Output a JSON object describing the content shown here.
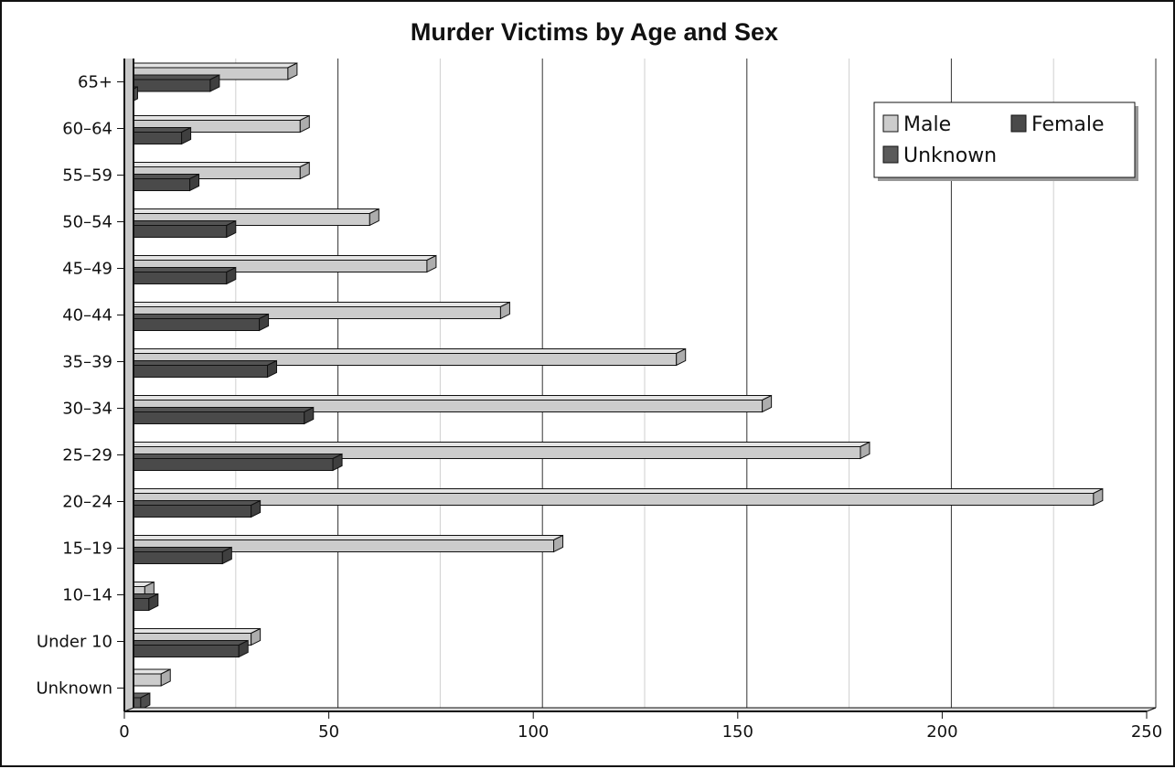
{
  "chart_data": {
    "type": "bar",
    "orientation": "horizontal",
    "style": "3d",
    "title": "Murder Victims by Age and Sex",
    "xlabel": "",
    "ylabel": "",
    "xlim": [
      0,
      250
    ],
    "x_ticks": [
      0,
      50,
      100,
      150,
      200,
      250
    ],
    "x_tick_labels": [
      "0",
      "50",
      "100",
      "150",
      "200",
      "250"
    ],
    "grid": true,
    "legend_position": "top-right",
    "categories": [
      "65+",
      "60–64",
      "55–59",
      "50–54",
      "45–49",
      "40–44",
      "35–39",
      "30–34",
      "25–29",
      "20–24",
      "15–19",
      "10–14",
      "Under 10",
      "Unknown"
    ],
    "series": [
      {
        "name": "Male",
        "color": "#cccccc",
        "values": [
          40,
          43,
          43,
          60,
          74,
          92,
          135,
          156,
          180,
          237,
          105,
          5,
          31,
          9
        ]
      },
      {
        "name": "Female",
        "color": "#4a4a4a",
        "values": [
          21,
          14,
          16,
          25,
          25,
          33,
          35,
          44,
          51,
          31,
          24,
          6,
          28,
          0
        ]
      },
      {
        "name": "Unknown",
        "color": "#5a5a5a",
        "values": [
          1,
          0,
          0,
          0,
          0,
          0,
          0,
          0,
          0,
          0,
          0,
          0,
          0,
          4
        ]
      }
    ]
  }
}
